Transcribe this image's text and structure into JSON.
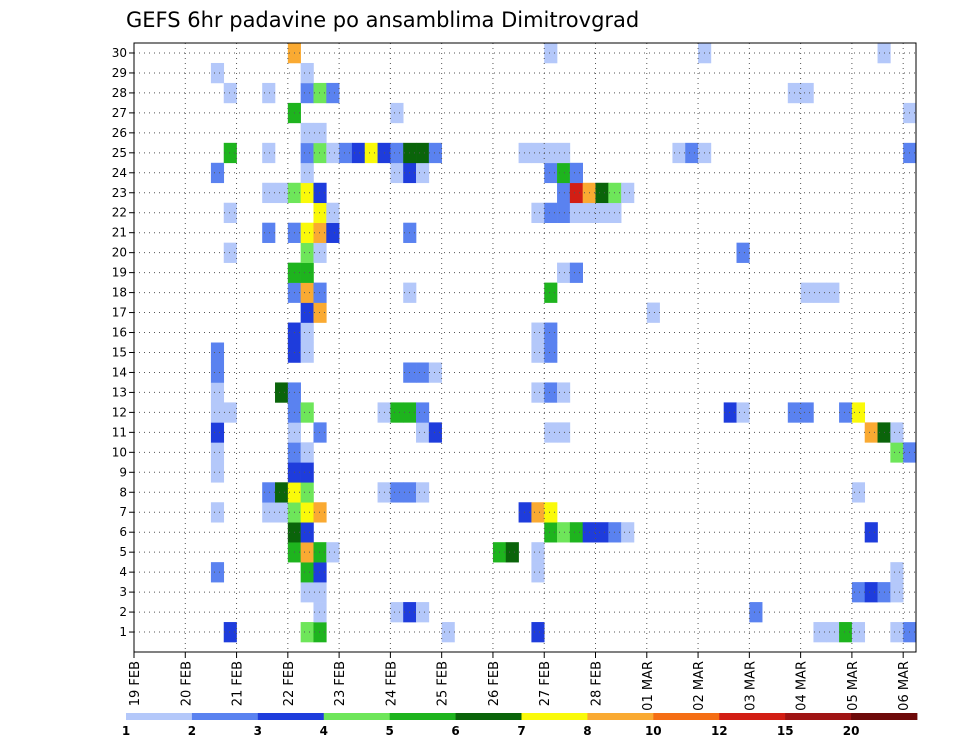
{
  "title": "GEFS 6hr padavine po ansamblima Dimitrovgrad",
  "chart_data": {
    "type": "heatmap",
    "title": "GEFS 6hr padavine po ansamblima Dimitrovgrad",
    "x_tick_labels": [
      "19 FEB",
      "20 FEB",
      "21 FEB",
      "22 FEB",
      "23 FEB",
      "24 FEB",
      "25 FEB",
      "26 FEB",
      "27 FEB",
      "28 FEB",
      "01 MAR",
      "02 MAR",
      "03 MAR",
      "04 MAR",
      "05 MAR",
      "06 MAR"
    ],
    "y_tick_labels": [
      "1",
      "2",
      "3",
      "4",
      "5",
      "6",
      "7",
      "8",
      "9",
      "10",
      "11",
      "12",
      "13",
      "14",
      "15",
      "16",
      "17",
      "18",
      "19",
      "20",
      "21",
      "22",
      "23",
      "24",
      "25",
      "26",
      "27",
      "28",
      "29",
      "30"
    ],
    "x_step": "6 hours",
    "color_levels": [
      "1",
      "2",
      "3",
      "4",
      "5",
      "6",
      "7",
      "8",
      "10",
      "12",
      "15",
      "20"
    ],
    "colors": [
      "#b4c8fa",
      "#5a82f0",
      "#1e3cdc",
      "#6ee65a",
      "#1eb41e",
      "#0a640a",
      "#fafa0a",
      "#faaa32",
      "#f56e14",
      "#d21e14",
      "#a01414",
      "#6e0a0a"
    ],
    "grid": true,
    "cells": [
      [
        1,
        7,
        3
      ],
      [
        1,
        13,
        4
      ],
      [
        1,
        14,
        5
      ],
      [
        1,
        24,
        1
      ],
      [
        1,
        31,
        3
      ],
      [
        1,
        53,
        1
      ],
      [
        1,
        54,
        1
      ],
      [
        1,
        55,
        5
      ],
      [
        1,
        56,
        1
      ],
      [
        1,
        59,
        1
      ],
      [
        1,
        60,
        2
      ],
      [
        2,
        14,
        1
      ],
      [
        2,
        20,
        1
      ],
      [
        2,
        21,
        3
      ],
      [
        2,
        22,
        1
      ],
      [
        2,
        48,
        2
      ],
      [
        3,
        13,
        1
      ],
      [
        3,
        14,
        1
      ],
      [
        3,
        56,
        2
      ],
      [
        3,
        57,
        3
      ],
      [
        3,
        58,
        2
      ],
      [
        3,
        59,
        1
      ],
      [
        4,
        6,
        2
      ],
      [
        4,
        13,
        5
      ],
      [
        4,
        14,
        3
      ],
      [
        4,
        31,
        1
      ],
      [
        4,
        59,
        1
      ],
      [
        5,
        12,
        5
      ],
      [
        5,
        13,
        8
      ],
      [
        5,
        14,
        5
      ],
      [
        5,
        15,
        1
      ],
      [
        5,
        28,
        5
      ],
      [
        5,
        29,
        6
      ],
      [
        5,
        31,
        1
      ],
      [
        6,
        12,
        6
      ],
      [
        6,
        13,
        3
      ],
      [
        6,
        32,
        5
      ],
      [
        6,
        33,
        4
      ],
      [
        6,
        34,
        5
      ],
      [
        6,
        35,
        3
      ],
      [
        6,
        36,
        3
      ],
      [
        6,
        37,
        2
      ],
      [
        6,
        38,
        1
      ],
      [
        6,
        57,
        3
      ],
      [
        7,
        6,
        1
      ],
      [
        7,
        10,
        1
      ],
      [
        7,
        11,
        1
      ],
      [
        7,
        12,
        4
      ],
      [
        7,
        13,
        7
      ],
      [
        7,
        14,
        8
      ],
      [
        7,
        30,
        3
      ],
      [
        7,
        31,
        8
      ],
      [
        7,
        32,
        7
      ],
      [
        8,
        10,
        2
      ],
      [
        8,
        11,
        6
      ],
      [
        8,
        12,
        7
      ],
      [
        8,
        13,
        4
      ],
      [
        8,
        19,
        1
      ],
      [
        8,
        20,
        2
      ],
      [
        8,
        21,
        2
      ],
      [
        8,
        22,
        1
      ],
      [
        8,
        56,
        1
      ],
      [
        9,
        6,
        1
      ],
      [
        9,
        12,
        3
      ],
      [
        9,
        13,
        3
      ],
      [
        10,
        6,
        1
      ],
      [
        10,
        12,
        2
      ],
      [
        10,
        13,
        1
      ],
      [
        10,
        59,
        4
      ],
      [
        10,
        60,
        2
      ],
      [
        11,
        6,
        3
      ],
      [
        11,
        12,
        1
      ],
      [
        11,
        14,
        2
      ],
      [
        11,
        22,
        1
      ],
      [
        11,
        23,
        3
      ],
      [
        11,
        32,
        1
      ],
      [
        11,
        33,
        1
      ],
      [
        11,
        57,
        8
      ],
      [
        11,
        58,
        6
      ],
      [
        11,
        59,
        1
      ],
      [
        12,
        6,
        1
      ],
      [
        12,
        7,
        1
      ],
      [
        12,
        12,
        2
      ],
      [
        12,
        13,
        4
      ],
      [
        12,
        19,
        1
      ],
      [
        12,
        20,
        5
      ],
      [
        12,
        21,
        5
      ],
      [
        12,
        22,
        2
      ],
      [
        12,
        46,
        3
      ],
      [
        12,
        47,
        1
      ],
      [
        12,
        51,
        2
      ],
      [
        12,
        52,
        2
      ],
      [
        12,
        55,
        2
      ],
      [
        12,
        56,
        7
      ],
      [
        13,
        6,
        1
      ],
      [
        13,
        11,
        6
      ],
      [
        13,
        12,
        2
      ],
      [
        13,
        31,
        1
      ],
      [
        13,
        32,
        2
      ],
      [
        13,
        33,
        1
      ],
      [
        14,
        6,
        2
      ],
      [
        14,
        21,
        2
      ],
      [
        14,
        22,
        2
      ],
      [
        14,
        23,
        1
      ],
      [
        15,
        6,
        2
      ],
      [
        15,
        12,
        3
      ],
      [
        15,
        13,
        1
      ],
      [
        15,
        31,
        1
      ],
      [
        15,
        32,
        2
      ],
      [
        16,
        12,
        3
      ],
      [
        16,
        13,
        1
      ],
      [
        16,
        31,
        1
      ],
      [
        16,
        32,
        2
      ],
      [
        17,
        13,
        3
      ],
      [
        17,
        14,
        8
      ],
      [
        17,
        40,
        1
      ],
      [
        18,
        12,
        2
      ],
      [
        18,
        13,
        8
      ],
      [
        18,
        14,
        2
      ],
      [
        18,
        21,
        1
      ],
      [
        18,
        32,
        5
      ],
      [
        18,
        52,
        1
      ],
      [
        18,
        53,
        1
      ],
      [
        18,
        54,
        1
      ],
      [
        19,
        12,
        5
      ],
      [
        19,
        13,
        5
      ],
      [
        19,
        33,
        1
      ],
      [
        19,
        34,
        2
      ],
      [
        20,
        7,
        1
      ],
      [
        20,
        13,
        4
      ],
      [
        20,
        14,
        1
      ],
      [
        20,
        47,
        2
      ],
      [
        21,
        10,
        2
      ],
      [
        21,
        12,
        2
      ],
      [
        21,
        13,
        7
      ],
      [
        21,
        14,
        8
      ],
      [
        21,
        15,
        3
      ],
      [
        21,
        21,
        2
      ],
      [
        22,
        7,
        1
      ],
      [
        22,
        14,
        7
      ],
      [
        22,
        15,
        1
      ],
      [
        22,
        31,
        1
      ],
      [
        22,
        32,
        2
      ],
      [
        22,
        33,
        2
      ],
      [
        22,
        34,
        1
      ],
      [
        22,
        35,
        1
      ],
      [
        22,
        36,
        1
      ],
      [
        22,
        37,
        1
      ],
      [
        23,
        10,
        1
      ],
      [
        23,
        11,
        1
      ],
      [
        23,
        12,
        4
      ],
      [
        23,
        13,
        7
      ],
      [
        23,
        14,
        3
      ],
      [
        23,
        33,
        2
      ],
      [
        23,
        34,
        10
      ],
      [
        23,
        35,
        8
      ],
      [
        23,
        36,
        6
      ],
      [
        23,
        37,
        4
      ],
      [
        23,
        38,
        1
      ],
      [
        24,
        6,
        2
      ],
      [
        24,
        13,
        1
      ],
      [
        24,
        20,
        1
      ],
      [
        24,
        21,
        3
      ],
      [
        24,
        22,
        1
      ],
      [
        24,
        32,
        2
      ],
      [
        24,
        33,
        5
      ],
      [
        24,
        34,
        2
      ],
      [
        25,
        7,
        5
      ],
      [
        25,
        10,
        1
      ],
      [
        25,
        13,
        2
      ],
      [
        25,
        14,
        4
      ],
      [
        25,
        15,
        1
      ],
      [
        25,
        16,
        2
      ],
      [
        25,
        17,
        3
      ],
      [
        25,
        18,
        7
      ],
      [
        25,
        19,
        3
      ],
      [
        25,
        20,
        2
      ],
      [
        25,
        21,
        6
      ],
      [
        25,
        22,
        6
      ],
      [
        25,
        23,
        2
      ],
      [
        25,
        30,
        1
      ],
      [
        25,
        31,
        1
      ],
      [
        25,
        32,
        1
      ],
      [
        25,
        33,
        1
      ],
      [
        25,
        42,
        1
      ],
      [
        25,
        43,
        2
      ],
      [
        25,
        44,
        1
      ],
      [
        25,
        60,
        2
      ],
      [
        26,
        13,
        1
      ],
      [
        26,
        14,
        1
      ],
      [
        27,
        12,
        5
      ],
      [
        27,
        20,
        1
      ],
      [
        27,
        60,
        1
      ],
      [
        28,
        7,
        1
      ],
      [
        28,
        10,
        1
      ],
      [
        28,
        13,
        2
      ],
      [
        28,
        14,
        4
      ],
      [
        28,
        15,
        2
      ],
      [
        28,
        51,
        1
      ],
      [
        28,
        52,
        1
      ],
      [
        29,
        6,
        1
      ],
      [
        29,
        13,
        1
      ],
      [
        30,
        12,
        8
      ],
      [
        30,
        32,
        1
      ],
      [
        30,
        44,
        1
      ],
      [
        30,
        58,
        1
      ]
    ]
  }
}
